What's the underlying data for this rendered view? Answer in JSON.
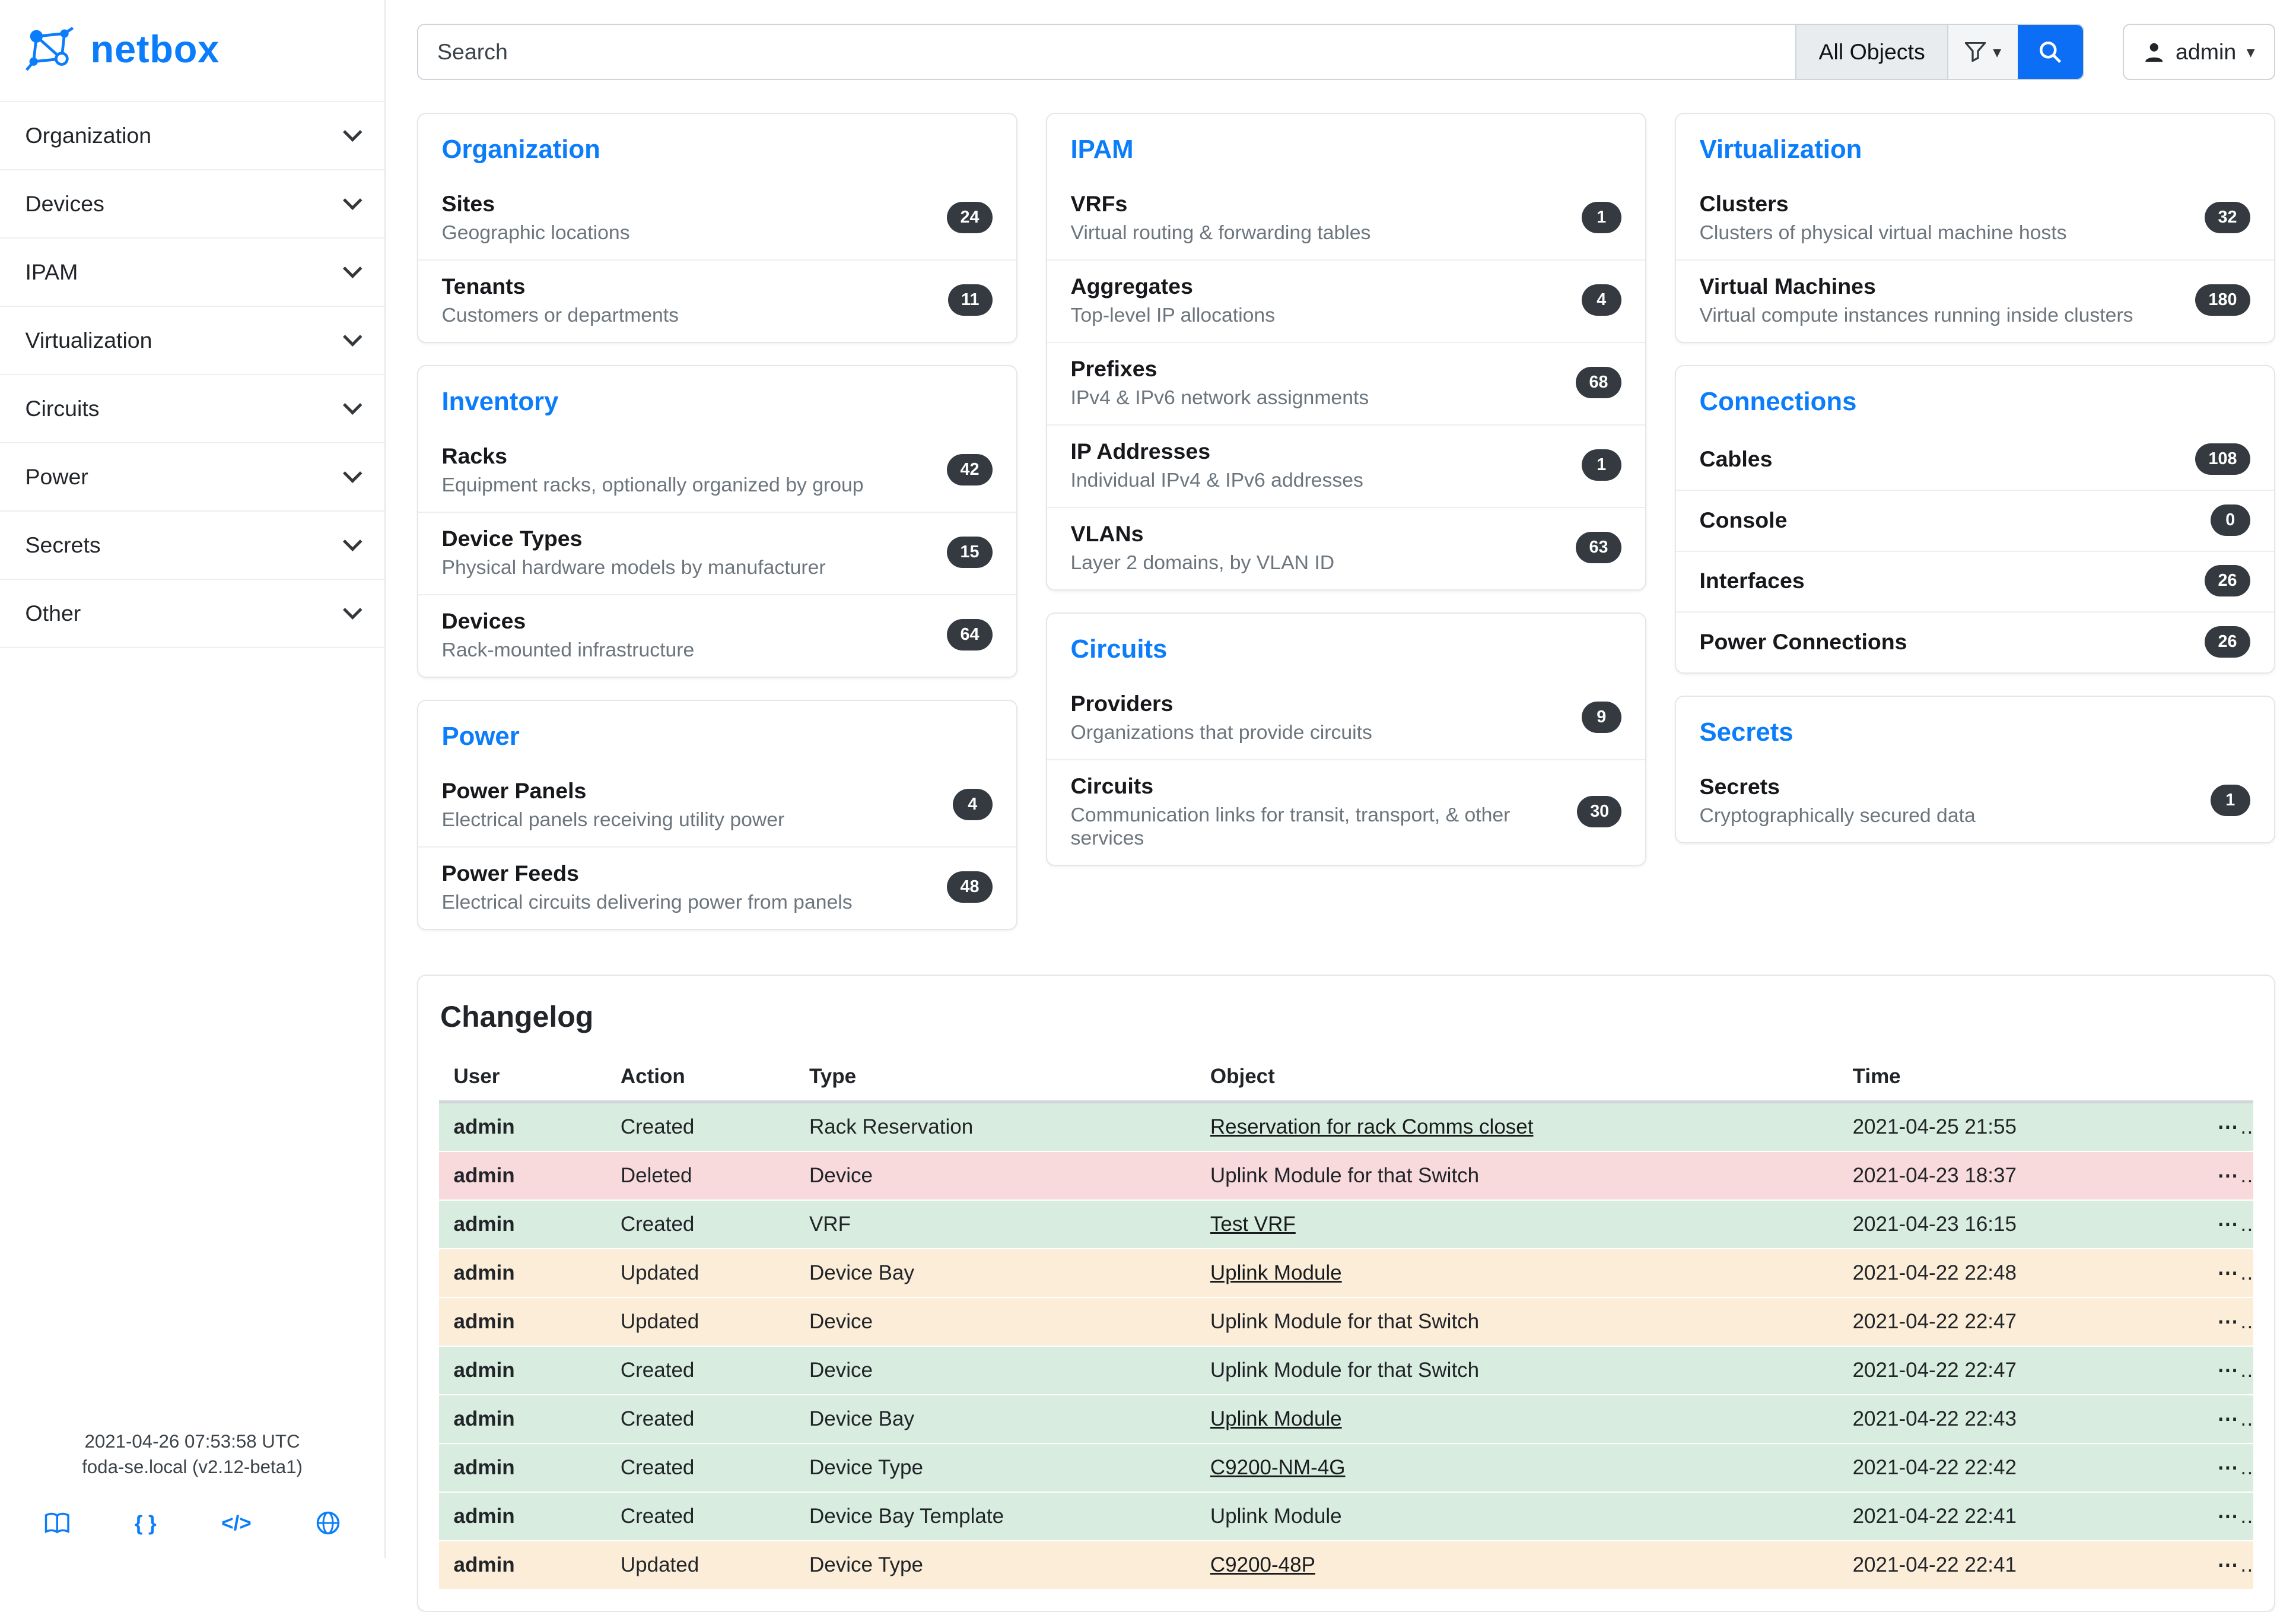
{
  "brand": {
    "name": "netbox"
  },
  "topbar": {
    "search_placeholder": "Search",
    "scope_button": "All Objects",
    "user": "admin"
  },
  "icons": {
    "caret_down": "▾",
    "braces_glyph": "{ }",
    "code_glyph": "</>",
    "ellipsis": "⋯"
  },
  "sidebar": {
    "items": [
      {
        "label": "Organization"
      },
      {
        "label": "Devices"
      },
      {
        "label": "IPAM"
      },
      {
        "label": "Virtualization"
      },
      {
        "label": "Circuits"
      },
      {
        "label": "Power"
      },
      {
        "label": "Secrets"
      },
      {
        "label": "Other"
      }
    ],
    "footer_line1": "2021-04-26 07:53:58 UTC",
    "footer_line2": "foda-se.local (v2.12-beta1)"
  },
  "columns": [
    [
      {
        "title": "Organization",
        "items": [
          {
            "name": "Sites",
            "desc": "Geographic locations",
            "count": "24"
          },
          {
            "name": "Tenants",
            "desc": "Customers or departments",
            "count": "11"
          }
        ]
      },
      {
        "title": "Inventory",
        "items": [
          {
            "name": "Racks",
            "desc": "Equipment racks, optionally organized by group",
            "count": "42"
          },
          {
            "name": "Device Types",
            "desc": "Physical hardware models by manufacturer",
            "count": "15"
          },
          {
            "name": "Devices",
            "desc": "Rack-mounted infrastructure",
            "count": "64"
          }
        ]
      },
      {
        "title": "Power",
        "items": [
          {
            "name": "Power Panels",
            "desc": "Electrical panels receiving utility power",
            "count": "4"
          },
          {
            "name": "Power Feeds",
            "desc": "Electrical circuits delivering power from panels",
            "count": "48"
          }
        ]
      }
    ],
    [
      {
        "title": "IPAM",
        "items": [
          {
            "name": "VRFs",
            "desc": "Virtual routing & forwarding tables",
            "count": "1"
          },
          {
            "name": "Aggregates",
            "desc": "Top-level IP allocations",
            "count": "4"
          },
          {
            "name": "Prefixes",
            "desc": "IPv4 & IPv6 network assignments",
            "count": "68"
          },
          {
            "name": "IP Addresses",
            "desc": "Individual IPv4 & IPv6 addresses",
            "count": "1"
          },
          {
            "name": "VLANs",
            "desc": "Layer 2 domains, by VLAN ID",
            "count": "63"
          }
        ]
      },
      {
        "title": "Circuits",
        "items": [
          {
            "name": "Providers",
            "desc": "Organizations that provide circuits",
            "count": "9"
          },
          {
            "name": "Circuits",
            "desc": "Communication links for transit, transport, & other services",
            "count": "30"
          }
        ]
      }
    ],
    [
      {
        "title": "Virtualization",
        "items": [
          {
            "name": "Clusters",
            "desc": "Clusters of physical virtual machine hosts",
            "count": "32"
          },
          {
            "name": "Virtual Machines",
            "desc": "Virtual compute instances running inside clusters",
            "count": "180"
          }
        ]
      },
      {
        "title": "Connections",
        "items": [
          {
            "name": "Cables",
            "desc": "",
            "count": "108"
          },
          {
            "name": "Console",
            "desc": "",
            "count": "0"
          },
          {
            "name": "Interfaces",
            "desc": "",
            "count": "26"
          },
          {
            "name": "Power Connections",
            "desc": "",
            "count": "26"
          }
        ]
      },
      {
        "title": "Secrets",
        "items": [
          {
            "name": "Secrets",
            "desc": "Cryptographically secured data",
            "count": "1"
          }
        ]
      }
    ]
  ],
  "changelog": {
    "title": "Changelog",
    "columns": [
      "User",
      "Action",
      "Type",
      "Object",
      "Time"
    ],
    "rows": [
      {
        "user": "admin",
        "action": "Created",
        "type": "Rack Reservation",
        "object": "Reservation for rack Comms closet",
        "object_link": true,
        "time": "2021-04-25 21:55",
        "variant": "success"
      },
      {
        "user": "admin",
        "action": "Deleted",
        "type": "Device",
        "object": "Uplink Module for that Switch",
        "object_link": false,
        "time": "2021-04-23 18:37",
        "variant": "danger"
      },
      {
        "user": "admin",
        "action": "Created",
        "type": "VRF",
        "object": "Test VRF",
        "object_link": true,
        "time": "2021-04-23 16:15",
        "variant": "success"
      },
      {
        "user": "admin",
        "action": "Updated",
        "type": "Device Bay",
        "object": "Uplink Module",
        "object_link": true,
        "time": "2021-04-22 22:48",
        "variant": "warning"
      },
      {
        "user": "admin",
        "action": "Updated",
        "type": "Device",
        "object": "Uplink Module for that Switch",
        "object_link": false,
        "time": "2021-04-22 22:47",
        "variant": "warning"
      },
      {
        "user": "admin",
        "action": "Created",
        "type": "Device",
        "object": "Uplink Module for that Switch",
        "object_link": false,
        "time": "2021-04-22 22:47",
        "variant": "success"
      },
      {
        "user": "admin",
        "action": "Created",
        "type": "Device Bay",
        "object": "Uplink Module",
        "object_link": true,
        "time": "2021-04-22 22:43",
        "variant": "success"
      },
      {
        "user": "admin",
        "action": "Created",
        "type": "Device Type",
        "object": "C9200-NM-4G",
        "object_link": true,
        "time": "2021-04-22 22:42",
        "variant": "success"
      },
      {
        "user": "admin",
        "action": "Created",
        "type": "Device Bay Template",
        "object": "Uplink Module",
        "object_link": false,
        "time": "2021-04-22 22:41",
        "variant": "success"
      },
      {
        "user": "admin",
        "action": "Updated",
        "type": "Device Type",
        "object": "C9200-48P",
        "object_link": true,
        "time": "2021-04-22 22:41",
        "variant": "warning"
      }
    ]
  }
}
